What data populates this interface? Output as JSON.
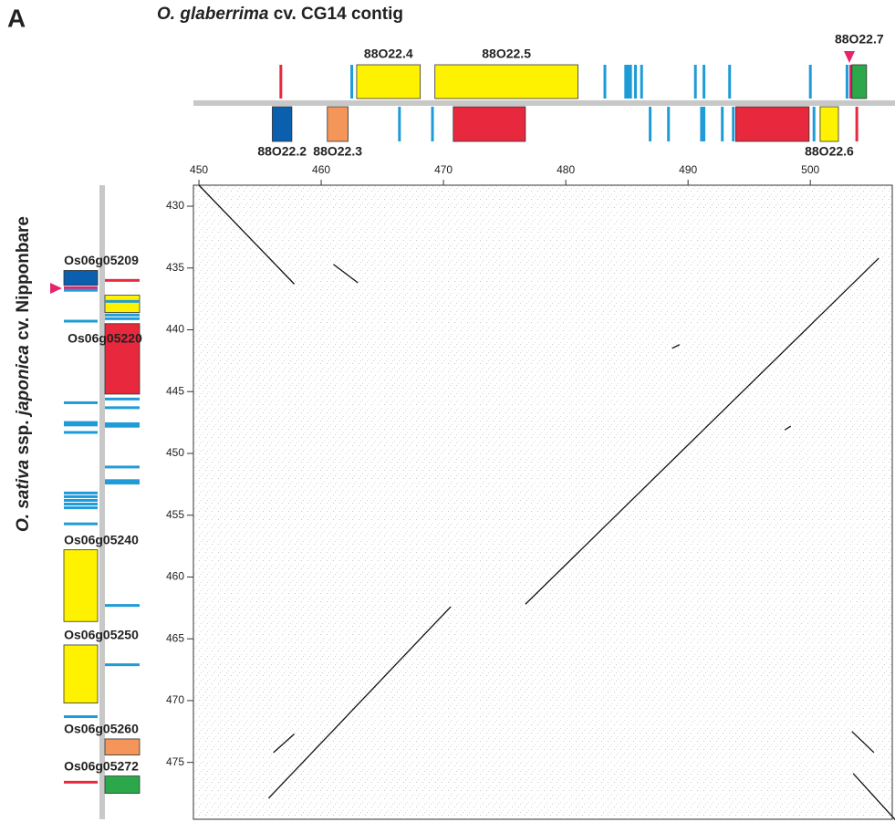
{
  "panel_label": "A",
  "chart_data": {
    "type": "dotplot",
    "title": [
      {
        "text": "O. glaberrima",
        "italic": true
      },
      {
        "text": " cv. CG14 contig",
        "italic": false
      }
    ],
    "ylabel": [
      {
        "text": "O. sativa",
        "italic": true
      },
      {
        "text": " ssp. ",
        "italic": false
      },
      {
        "text": "japonica",
        "italic": true
      },
      {
        "text": " cv. Nipponbare",
        "italic": false
      }
    ],
    "xlim": [
      449.55,
      506.7
    ],
    "xticks": [
      450,
      460,
      470,
      480,
      490,
      500
    ],
    "ylim": [
      428.3,
      479.6
    ],
    "yticks": [
      430,
      435,
      440,
      445,
      450,
      455,
      460,
      465,
      470,
      475
    ],
    "segments": [
      {
        "x": [
          450,
          457.8
        ],
        "y": [
          428.3,
          436.3
        ]
      },
      {
        "x": [
          461,
          463
        ],
        "y": [
          434.7,
          436.2
        ]
      },
      {
        "x": [
          476.7,
          505.6
        ],
        "y": [
          462.2,
          434.2
        ]
      },
      {
        "x": [
          455.7,
          470.6
        ],
        "y": [
          477.9,
          462.4
        ]
      },
      {
        "x": [
          503.5,
          507
        ],
        "y": [
          475.9,
          479.7
        ]
      },
      {
        "x": [
          456.1,
          457.8
        ],
        "y": [
          474.2,
          472.7
        ]
      },
      {
        "x": [
          503.4,
          505.2
        ],
        "y": [
          472.5,
          474.2
        ]
      },
      {
        "x": [
          497.9,
          498.4
        ],
        "y": [
          448.1,
          447.8
        ]
      },
      {
        "x": [
          488.7,
          489.3
        ],
        "y": [
          441.5,
          441.2
        ]
      }
    ],
    "top_track": {
      "above": [
        {
          "start": 456.7,
          "end": 456.7,
          "color": "#e8283c"
        },
        {
          "start": 462.5,
          "end": 462.5,
          "color": "#1f9bd7"
        },
        {
          "start": 462.9,
          "end": 468.1,
          "color": "#fff200",
          "label": "88O22.4"
        },
        {
          "start": 469.3,
          "end": 481.0,
          "color": "#fff200",
          "label": "88O22.5"
        },
        {
          "start": 483.2,
          "end": 483.2,
          "color": "#1f9bd7"
        },
        {
          "start": 484.9,
          "end": 484.9,
          "color": "#1f9bd7"
        },
        {
          "start": 485.1,
          "end": 485.1,
          "color": "#1f9bd7"
        },
        {
          "start": 485.3,
          "end": 485.3,
          "color": "#1f9bd7"
        },
        {
          "start": 485.7,
          "end": 485.7,
          "color": "#1f9bd7"
        },
        {
          "start": 486.2,
          "end": 486.2,
          "color": "#1f9bd7"
        },
        {
          "start": 490.6,
          "end": 490.6,
          "color": "#1f9bd7"
        },
        {
          "start": 491.3,
          "end": 491.3,
          "color": "#1f9bd7"
        },
        {
          "start": 493.4,
          "end": 493.4,
          "color": "#1f9bd7"
        },
        {
          "start": 500.0,
          "end": 500.0,
          "color": "#1f9bd7"
        },
        {
          "start": 503.0,
          "end": 503.0,
          "color": "#1f9bd7"
        },
        {
          "start": 503.3,
          "end": 503.3,
          "color": "#e6246e"
        },
        {
          "start": 503.4,
          "end": 504.6,
          "color": "#2aa84a",
          "label": "88O22.7"
        }
      ],
      "below": [
        {
          "start": 456.0,
          "end": 457.6,
          "color": "#0a5fae",
          "label": "88O22.2"
        },
        {
          "start": 460.5,
          "end": 462.2,
          "color": "#f4955a",
          "label": "88O22.3"
        },
        {
          "start": 466.4,
          "end": 466.4,
          "color": "#1f9bd7"
        },
        {
          "start": 469.1,
          "end": 469.1,
          "color": "#1f9bd7"
        },
        {
          "start": 470.8,
          "end": 476.7,
          "color": "#e8283c"
        },
        {
          "start": 486.9,
          "end": 486.9,
          "color": "#1f9bd7"
        },
        {
          "start": 488.4,
          "end": 488.4,
          "color": "#1f9bd7"
        },
        {
          "start": 491.1,
          "end": 491.1,
          "color": "#1f9bd7"
        },
        {
          "start": 491.3,
          "end": 491.3,
          "color": "#1f9bd7"
        },
        {
          "start": 492.8,
          "end": 492.8,
          "color": "#1f9bd7"
        },
        {
          "start": 493.7,
          "end": 493.7,
          "color": "#1f9bd7"
        },
        {
          "start": 493.9,
          "end": 499.9,
          "color": "#e8283c"
        },
        {
          "start": 500.3,
          "end": 500.3,
          "color": "#1f9bd7"
        },
        {
          "start": 500.8,
          "end": 502.3,
          "color": "#fff200",
          "label": "88O22.6"
        },
        {
          "start": 503.8,
          "end": 503.8,
          "color": "#e8283c"
        }
      ]
    },
    "left_track": {
      "left": [
        {
          "start": 435.2,
          "end": 436.4,
          "color": "#0a5fae",
          "label": "Os06g05209"
        },
        {
          "start": 436.6,
          "end": 436.6,
          "color": "#e6246e"
        },
        {
          "start": 436.8,
          "end": 436.8,
          "color": "#1f9bd7"
        },
        {
          "start": 439.3,
          "end": 439.3,
          "color": "#1f9bd7"
        },
        {
          "start": 445.9,
          "end": 445.9,
          "color": "#1f9bd7"
        },
        {
          "start": 447.5,
          "end": 447.5,
          "color": "#1f9bd7"
        },
        {
          "start": 447.7,
          "end": 447.7,
          "color": "#1f9bd7"
        },
        {
          "start": 448.3,
          "end": 448.3,
          "color": "#1f9bd7"
        },
        {
          "start": 453.2,
          "end": 453.2,
          "color": "#1f9bd7"
        },
        {
          "start": 453.5,
          "end": 453.5,
          "color": "#1f9bd7"
        },
        {
          "start": 453.8,
          "end": 453.8,
          "color": "#1f9bd7"
        },
        {
          "start": 454.1,
          "end": 454.1,
          "color": "#1f9bd7"
        },
        {
          "start": 454.4,
          "end": 454.4,
          "color": "#1f9bd7"
        },
        {
          "start": 455.7,
          "end": 455.7,
          "color": "#1f9bd7"
        },
        {
          "start": 457.8,
          "end": 463.6,
          "color": "#fff200",
          "label": "Os06g05240"
        },
        {
          "start": 465.5,
          "end": 470.2,
          "color": "#fff200",
          "label": "Os06g05250"
        },
        {
          "start": 471.3,
          "end": 471.3,
          "color": "#1f9bd7"
        },
        {
          "start": 476.6,
          "end": 476.6,
          "color": "#e8283c"
        }
      ],
      "right": [
        {
          "start": 436.0,
          "end": 436.0,
          "color": "#e8283c"
        },
        {
          "start": 437.2,
          "end": 438.6,
          "color": "#fff200"
        },
        {
          "start": 437.7,
          "end": 437.7,
          "color": "#1f9bd7"
        },
        {
          "start": 438.8,
          "end": 438.8,
          "color": "#1f9bd7"
        },
        {
          "start": 439.1,
          "end": 439.1,
          "color": "#1f9bd7"
        },
        {
          "start": 439.5,
          "end": 445.2,
          "color": "#e8283c",
          "label": "Os06g05220"
        },
        {
          "start": 445.6,
          "end": 445.6,
          "color": "#1f9bd7"
        },
        {
          "start": 446.3,
          "end": 446.3,
          "color": "#1f9bd7"
        },
        {
          "start": 447.6,
          "end": 447.6,
          "color": "#1f9bd7"
        },
        {
          "start": 447.8,
          "end": 447.8,
          "color": "#1f9bd7"
        },
        {
          "start": 451.1,
          "end": 451.1,
          "color": "#1f9bd7"
        },
        {
          "start": 452.2,
          "end": 452.2,
          "color": "#1f9bd7"
        },
        {
          "start": 452.4,
          "end": 452.4,
          "color": "#1f9bd7"
        },
        {
          "start": 462.3,
          "end": 462.3,
          "color": "#1f9bd7"
        },
        {
          "start": 467.1,
          "end": 467.1,
          "color": "#1f9bd7"
        },
        {
          "start": 473.1,
          "end": 474.4,
          "color": "#f4955a",
          "label": "Os06g05260"
        },
        {
          "start": 476.1,
          "end": 477.5,
          "color": "#2aa84a",
          "label": "Os06g05272"
        }
      ]
    }
  }
}
